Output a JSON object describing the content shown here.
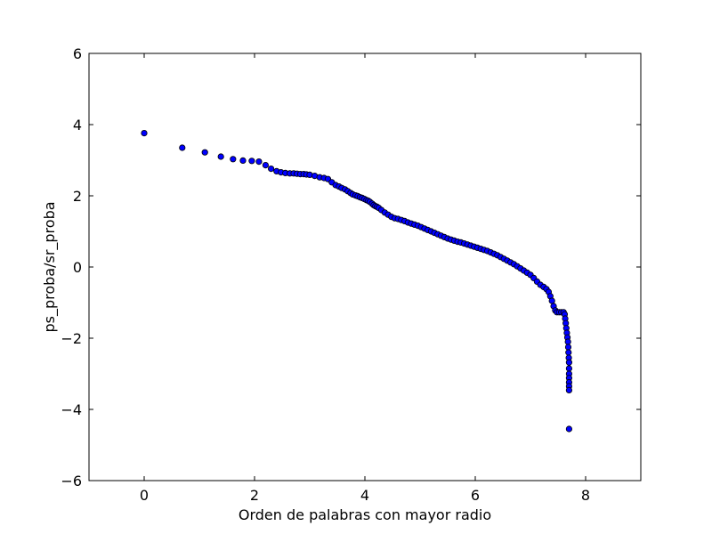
{
  "chart_data": {
    "type": "scatter",
    "title": "",
    "xlabel": "Orden de palabras con mayor radio",
    "ylabel": "ps_proba/sr_proba",
    "xlim": [
      -1,
      9
    ],
    "ylim": [
      -6,
      6
    ],
    "xticks": [
      0,
      2,
      4,
      6,
      8
    ],
    "yticks": [
      -6,
      -4,
      -2,
      0,
      2,
      4,
      6
    ],
    "xtick_labels": [
      "0",
      "2",
      "4",
      "6",
      "8"
    ],
    "ytick_labels": [
      "−6",
      "−4",
      "−2",
      "0",
      "2",
      "4",
      "6"
    ],
    "grid": false,
    "marker_color": "#0000ff",
    "marker_edge_color": "#000000",
    "series": [
      {
        "x_scale": "ln(rank)",
        "points": [
          [
            0.0,
            3.76
          ],
          [
            0.69,
            3.35
          ],
          [
            1.1,
            3.22
          ],
          [
            1.39,
            3.1
          ],
          [
            1.61,
            3.03
          ],
          [
            1.79,
            2.99
          ],
          [
            1.95,
            2.98
          ],
          [
            2.08,
            2.96
          ],
          [
            2.2,
            2.86
          ],
          [
            2.3,
            2.76
          ],
          [
            2.4,
            2.69
          ],
          [
            2.48,
            2.66
          ],
          [
            2.56,
            2.64
          ],
          [
            2.64,
            2.63
          ],
          [
            2.71,
            2.63
          ],
          [
            2.77,
            2.62
          ],
          [
            2.83,
            2.61
          ],
          [
            2.89,
            2.61
          ],
          [
            2.94,
            2.6
          ],
          [
            3.0,
            2.59
          ],
          [
            3.09,
            2.56
          ],
          [
            3.18,
            2.52
          ],
          [
            3.26,
            2.5
          ],
          [
            3.33,
            2.47
          ],
          [
            3.4,
            2.38
          ],
          [
            3.47,
            2.3
          ],
          [
            3.53,
            2.26
          ],
          [
            3.58,
            2.22
          ],
          [
            3.64,
            2.18
          ],
          [
            3.69,
            2.13
          ],
          [
            3.74,
            2.08
          ],
          [
            3.78,
            2.04
          ],
          [
            3.83,
            2.01
          ],
          [
            3.87,
            1.99
          ],
          [
            3.91,
            1.96
          ],
          [
            3.95,
            1.94
          ],
          [
            3.99,
            1.91
          ],
          [
            4.03,
            1.88
          ],
          [
            4.06,
            1.86
          ],
          [
            4.09,
            1.83
          ],
          [
            4.13,
            1.78
          ],
          [
            4.16,
            1.74
          ],
          [
            4.19,
            1.71
          ],
          [
            4.22,
            1.69
          ],
          [
            4.25,
            1.66
          ],
          [
            4.3,
            1.6
          ],
          [
            4.36,
            1.53
          ],
          [
            4.42,
            1.47
          ],
          [
            4.48,
            1.41
          ],
          [
            4.54,
            1.37
          ],
          [
            4.6,
            1.35
          ],
          [
            4.66,
            1.32
          ],
          [
            4.72,
            1.29
          ],
          [
            4.78,
            1.25
          ],
          [
            4.84,
            1.22
          ],
          [
            4.9,
            1.19
          ],
          [
            4.96,
            1.16
          ],
          [
            5.02,
            1.12
          ],
          [
            5.08,
            1.08
          ],
          [
            5.14,
            1.04
          ],
          [
            5.2,
            1.0
          ],
          [
            5.26,
            0.96
          ],
          [
            5.32,
            0.92
          ],
          [
            5.38,
            0.88
          ],
          [
            5.44,
            0.84
          ],
          [
            5.5,
            0.8
          ],
          [
            5.56,
            0.77
          ],
          [
            5.62,
            0.74
          ],
          [
            5.68,
            0.71
          ],
          [
            5.74,
            0.69
          ],
          [
            5.8,
            0.66
          ],
          [
            5.86,
            0.63
          ],
          [
            5.92,
            0.6
          ],
          [
            5.98,
            0.57
          ],
          [
            6.04,
            0.54
          ],
          [
            6.1,
            0.51
          ],
          [
            6.16,
            0.48
          ],
          [
            6.22,
            0.45
          ],
          [
            6.28,
            0.41
          ],
          [
            6.34,
            0.37
          ],
          [
            6.4,
            0.33
          ],
          [
            6.46,
            0.28
          ],
          [
            6.52,
            0.23
          ],
          [
            6.58,
            0.18
          ],
          [
            6.64,
            0.13
          ],
          [
            6.7,
            0.08
          ],
          [
            6.76,
            0.02
          ],
          [
            6.82,
            -0.04
          ],
          [
            6.88,
            -0.1
          ],
          [
            6.94,
            -0.16
          ],
          [
            7.0,
            -0.22
          ],
          [
            7.06,
            -0.31
          ],
          [
            7.12,
            -0.41
          ],
          [
            7.18,
            -0.5
          ],
          [
            7.24,
            -0.56
          ],
          [
            7.29,
            -0.62
          ],
          [
            7.33,
            -0.7
          ],
          [
            7.36,
            -0.82
          ],
          [
            7.39,
            -0.95
          ],
          [
            7.42,
            -1.1
          ],
          [
            7.45,
            -1.22
          ],
          [
            7.48,
            -1.27
          ],
          [
            7.52,
            -1.27
          ],
          [
            7.56,
            -1.27
          ],
          [
            7.6,
            -1.27
          ],
          [
            7.62,
            -1.33
          ],
          [
            7.63,
            -1.45
          ],
          [
            7.64,
            -1.58
          ],
          [
            7.65,
            -1.72
          ],
          [
            7.66,
            -1.85
          ],
          [
            7.67,
            -1.98
          ],
          [
            7.68,
            -2.1
          ],
          [
            7.685,
            -2.25
          ],
          [
            7.69,
            -2.4
          ],
          [
            7.695,
            -2.55
          ],
          [
            7.7,
            -2.68
          ],
          [
            7.7,
            -2.85
          ],
          [
            7.7,
            -3.0
          ],
          [
            7.7,
            -3.12
          ],
          [
            7.7,
            -3.24
          ],
          [
            7.7,
            -3.35
          ],
          [
            7.7,
            -3.46
          ],
          [
            7.7,
            -4.55
          ]
        ]
      }
    ]
  }
}
